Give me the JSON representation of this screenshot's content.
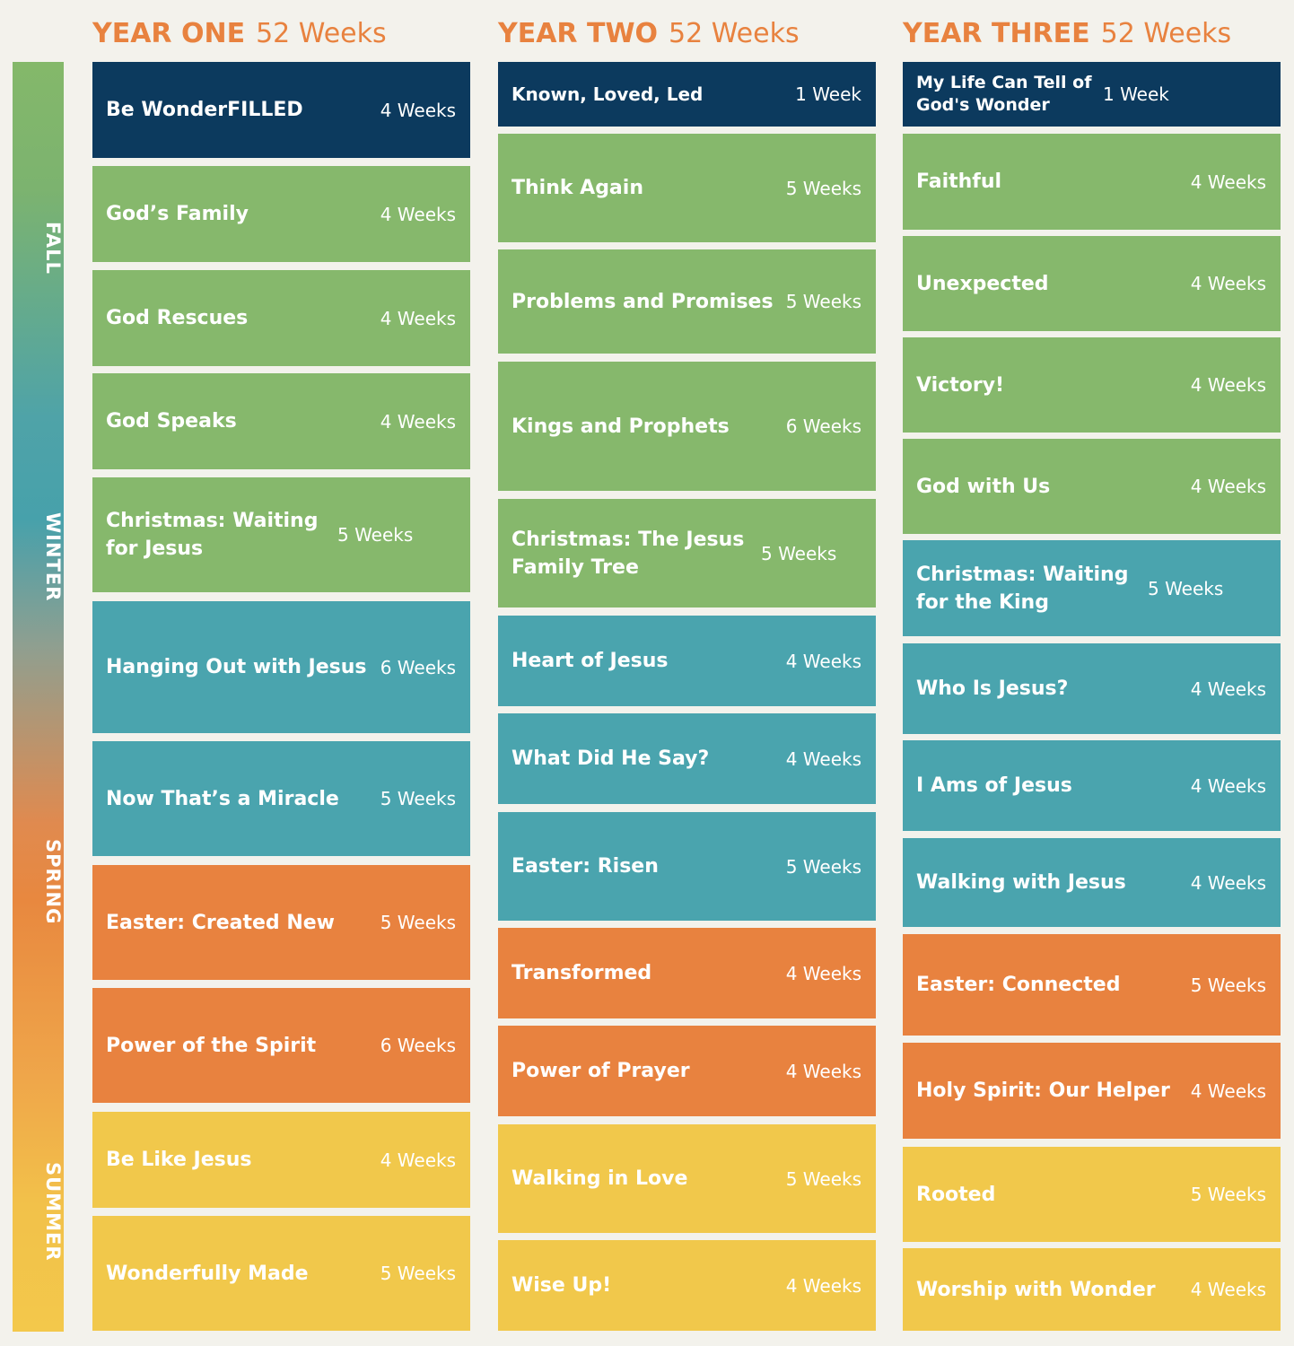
{
  "seasons": [
    "FALL",
    "WINTER",
    "SPRING",
    "SUMMER"
  ],
  "colors": {
    "navy": "#0c3a5e",
    "green": "#86b86c",
    "teal": "#4aa4ae",
    "orange": "#e8823f",
    "yellow": "#f1c84b",
    "background": "#f3f2ec"
  },
  "years": [
    {
      "title": "YEAR ONE",
      "weeks": "52 Weeks",
      "units": [
        {
          "name": "Be WonderFILLED",
          "weeks": "4 Weeks",
          "color": "navy"
        },
        {
          "name": "God’s Family",
          "weeks": "4 Weeks",
          "color": "green"
        },
        {
          "name": "God Rescues",
          "weeks": "4 Weeks",
          "color": "green"
        },
        {
          "name": "God Speaks",
          "weeks": "4 Weeks",
          "color": "green"
        },
        {
          "name": "Christmas: Waiting for Jesus",
          "weeks": "5 Weeks",
          "color": "green"
        },
        {
          "name": "Hanging Out with Jesus",
          "weeks": "6 Weeks",
          "color": "teal"
        },
        {
          "name": "Now That’s a Miracle",
          "weeks": "5 Weeks",
          "color": "teal"
        },
        {
          "name": "Easter: Created New",
          "weeks": "5 Weeks",
          "color": "orange"
        },
        {
          "name": "Power of the Spirit",
          "weeks": "6 Weeks",
          "color": "orange"
        },
        {
          "name": "Be Like Jesus",
          "weeks": "4 Weeks",
          "color": "yellow"
        },
        {
          "name": "Wonderfully Made",
          "weeks": "5 Weeks",
          "color": "yellow"
        }
      ]
    },
    {
      "title": "YEAR TWO",
      "weeks": "52 Weeks",
      "units": [
        {
          "name": "Known, Loved, Led",
          "weeks": "1 Week",
          "color": "navy"
        },
        {
          "name": "Think Again",
          "weeks": "5 Weeks",
          "color": "green"
        },
        {
          "name": "Problems and Promises",
          "weeks": "5 Weeks",
          "color": "green"
        },
        {
          "name": "Kings and Prophets",
          "weeks": "6 Weeks",
          "color": "green"
        },
        {
          "name": "Christmas: The Jesus Family Tree",
          "weeks": "5 Weeks",
          "color": "green"
        },
        {
          "name": "Heart of Jesus",
          "weeks": "4 Weeks",
          "color": "teal"
        },
        {
          "name": "What Did He Say?",
          "weeks": "4 Weeks",
          "color": "teal"
        },
        {
          "name": "Easter: Risen",
          "weeks": "5 Weeks",
          "color": "teal"
        },
        {
          "name": "Transformed",
          "weeks": "4 Weeks",
          "color": "orange"
        },
        {
          "name": "Power of Prayer",
          "weeks": "4 Weeks",
          "color": "orange"
        },
        {
          "name": "Walking in Love",
          "weeks": "5 Weeks",
          "color": "yellow"
        },
        {
          "name": "Wise Up!",
          "weeks": "4 Weeks",
          "color": "yellow"
        }
      ]
    },
    {
      "title": "YEAR THREE",
      "weeks": "52 Weeks",
      "units": [
        {
          "name": "My Life Can Tell of God's Wonder",
          "weeks": "1 Week",
          "color": "navy"
        },
        {
          "name": "Faithful",
          "weeks": "4 Weeks",
          "color": "green"
        },
        {
          "name": "Unexpected",
          "weeks": "4 Weeks",
          "color": "green"
        },
        {
          "name": "Victory!",
          "weeks": "4 Weeks",
          "color": "green"
        },
        {
          "name": "God with Us",
          "weeks": "4 Weeks",
          "color": "green"
        },
        {
          "name": "Christmas: Waiting for the King",
          "weeks": "5 Weeks",
          "color": "teal"
        },
        {
          "name": "Who Is Jesus?",
          "weeks": "4 Weeks",
          "color": "teal"
        },
        {
          "name": "I Ams of Jesus",
          "weeks": "4 Weeks",
          "color": "teal"
        },
        {
          "name": "Walking with Jesus",
          "weeks": "4 Weeks",
          "color": "teal"
        },
        {
          "name": "Easter: Connected",
          "weeks": "5 Weeks",
          "color": "orange"
        },
        {
          "name": "Holy Spirit: Our Helper",
          "weeks": "4 Weeks",
          "color": "orange"
        },
        {
          "name": "Rooted",
          "weeks": "5 Weeks",
          "color": "yellow"
        },
        {
          "name": "Worship with Wonder",
          "weeks": "4 Weeks",
          "color": "yellow"
        }
      ]
    }
  ]
}
